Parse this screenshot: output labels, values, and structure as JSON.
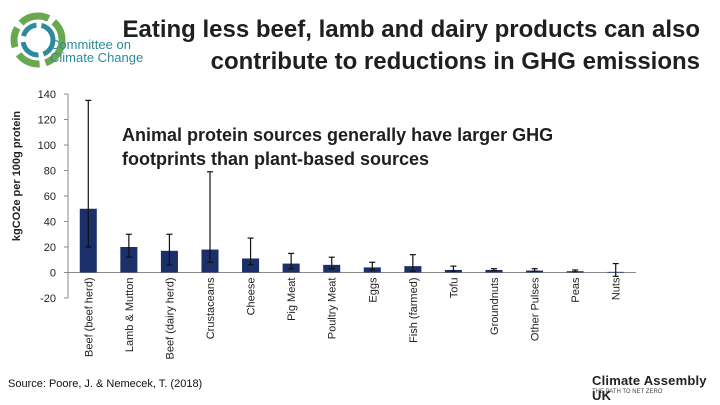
{
  "header": {
    "title_line1": "Eating less beef, lamb and dairy products can also",
    "title_line2": "contribute to reductions in GHG emissions"
  },
  "logo": {
    "line1": "Committee on",
    "line2": "Climate Change"
  },
  "footer": {
    "source": "Source: Poore, J. & Nemecek, T. (2018)",
    "brand": "Climate Assembly UK",
    "brand_tagline": "THE PATH TO NET ZERO"
  },
  "colors": {
    "bar": "#1b2f6b",
    "axis": "#8a8a8a",
    "logo_teal": "#2c8a9c"
  },
  "chart_data": {
    "type": "bar",
    "title": "",
    "ylabel": "kgCO2e per 100g protein",
    "xlabel": "",
    "ylim": [
      -20,
      140
    ],
    "yticks": [
      -20,
      0,
      20,
      40,
      60,
      80,
      100,
      120,
      140
    ],
    "annotation_line1": "Animal protein sources generally have larger GHG",
    "annotation_line2": "footprints than plant-based sources",
    "categories": [
      "Beef (beef herd)",
      "Lamb & Mutton",
      "Beef (dairy herd)",
      "Crustaceans",
      "Cheese",
      "Pig Meat",
      "Poultry Meat",
      "Eggs",
      "Fish (farmed)",
      "Tofu",
      "Groundnuts",
      "Other Pulses",
      "Peas",
      "Nuts"
    ],
    "values": [
      50,
      20,
      17,
      18,
      11,
      7,
      6,
      4,
      5,
      2,
      2,
      1.5,
      1,
      0.5
    ],
    "error_low": [
      20,
      12,
      6,
      8,
      6,
      3,
      3,
      2,
      1,
      1,
      1.5,
      1,
      0.5,
      -3
    ],
    "error_high": [
      135,
      30,
      30,
      79,
      27,
      15,
      12,
      8,
      14,
      5,
      3,
      3,
      2,
      7
    ]
  }
}
